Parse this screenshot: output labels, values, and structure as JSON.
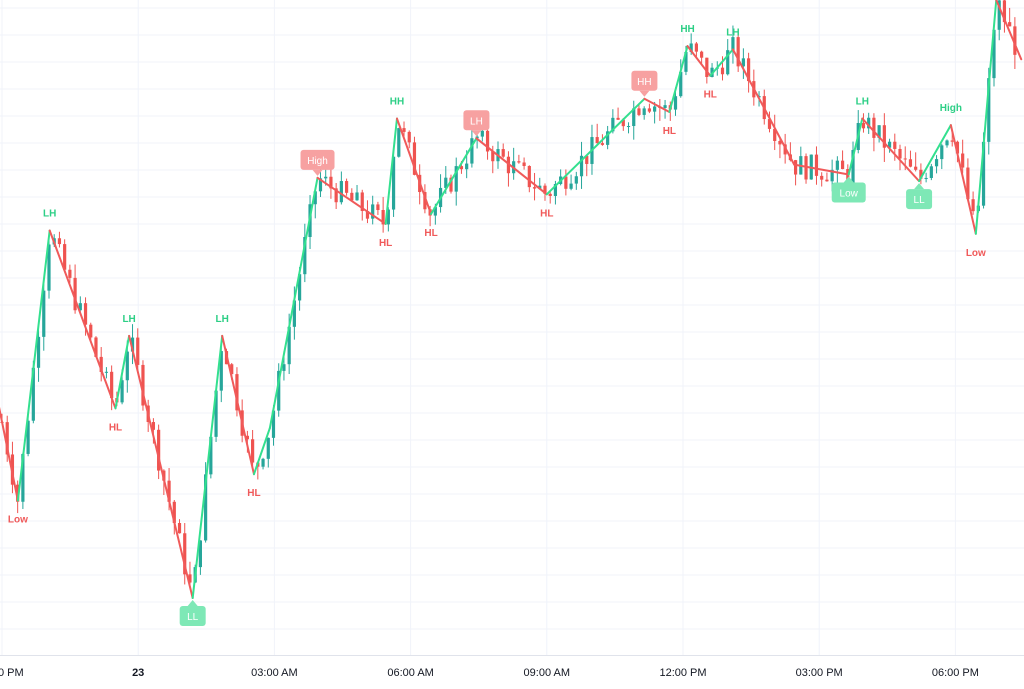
{
  "chart_data": {
    "type": "candlestick",
    "grid": true,
    "legend": "none",
    "colors": {
      "up": "#26a69a",
      "down": "#ef5350",
      "zigzag_up": "#33e08f",
      "zigzag_down": "#f05a5a",
      "label_up": "#2dcf86",
      "label_down": "#f05a5a",
      "bubble_up": "#7ee8b6",
      "bubble_down": "#f7a1a1",
      "grid": "#f0f3fa",
      "axis_text": "#131722"
    },
    "x_ticks": [
      {
        "label": "0 PM",
        "t": 0.0,
        "bold": false
      },
      {
        "label": "23",
        "t": 3.0,
        "bold": true
      },
      {
        "label": "03:00 AM",
        "t": 6.0,
        "bold": false
      },
      {
        "label": "06:00 AM",
        "t": 9.0,
        "bold": false
      },
      {
        "label": "09:00 AM",
        "t": 12.0,
        "bold": false
      },
      {
        "label": "12:00 PM",
        "t": 15.0,
        "bold": false
      },
      {
        "label": "03:00 PM",
        "t": 18.0,
        "bold": false
      },
      {
        "label": "06:00 PM",
        "t": 21.0,
        "bold": false
      }
    ],
    "x_range": [
      0.0,
      22.45
    ],
    "y_range": [
      0.0,
      100.0
    ],
    "pivots": [
      {
        "t": -0.5,
        "v": 58,
        "label": ""
      },
      {
        "t": 0.35,
        "v": 29.0,
        "label": "Low",
        "style": "text"
      },
      {
        "t": 1.05,
        "v": 70.0,
        "label": "LH",
        "style": "text"
      },
      {
        "t": 2.5,
        "v": 43.0,
        "label": "HL",
        "style": "text"
      },
      {
        "t": 2.8,
        "v": 54.0,
        "label": "LH",
        "style": "text"
      },
      {
        "t": 4.2,
        "v": 14.2,
        "label": "LL",
        "style": "bubble"
      },
      {
        "t": 4.85,
        "v": 54.0,
        "label": "LH",
        "style": "text"
      },
      {
        "t": 5.55,
        "v": 33.0,
        "label": "HL",
        "style": "text"
      },
      {
        "t": 5.9,
        "v": 40.0,
        "label": "",
        "style": "none"
      },
      {
        "t": 6.95,
        "v": 78.0,
        "label": "High",
        "style": "bubble"
      },
      {
        "t": 8.45,
        "v": 71.0,
        "label": "HL",
        "style": "text"
      },
      {
        "t": 8.7,
        "v": 87.0,
        "label": "HH",
        "style": "text"
      },
      {
        "t": 9.45,
        "v": 72.5,
        "label": "HL",
        "style": "text"
      },
      {
        "t": 10.45,
        "v": 84.0,
        "label": "LH",
        "style": "bubble"
      },
      {
        "t": 12.0,
        "v": 75.5,
        "label": "HL",
        "style": "text"
      },
      {
        "t": 14.15,
        "v": 90.0,
        "label": "HH",
        "style": "bubble"
      },
      {
        "t": 14.7,
        "v": 88.0,
        "label": "HL",
        "style": "text"
      },
      {
        "t": 15.1,
        "v": 98.0,
        "label": "HH",
        "style": "text"
      },
      {
        "t": 15.6,
        "v": 93.5,
        "label": "HL",
        "style": "text"
      },
      {
        "t": 16.1,
        "v": 97.5,
        "label": "LH",
        "style": "text"
      },
      {
        "t": 17.45,
        "v": 80.0,
        "label": "",
        "style": "none"
      },
      {
        "t": 18.65,
        "v": 78.5,
        "label": "Low",
        "style": "bubble"
      },
      {
        "t": 18.95,
        "v": 87.0,
        "label": "LH",
        "style": "text"
      },
      {
        "t": 20.2,
        "v": 77.5,
        "label": "LL",
        "style": "bubble"
      },
      {
        "t": 20.9,
        "v": 86.0,
        "label": "High",
        "style": "text"
      },
      {
        "t": 21.45,
        "v": 69.5,
        "label": "Low",
        "style": "text"
      },
      {
        "t": 21.9,
        "v": 105.0,
        "label": "",
        "style": "none"
      },
      {
        "t": 22.45,
        "v": 96.0,
        "label": "",
        "style": "none"
      }
    ]
  }
}
